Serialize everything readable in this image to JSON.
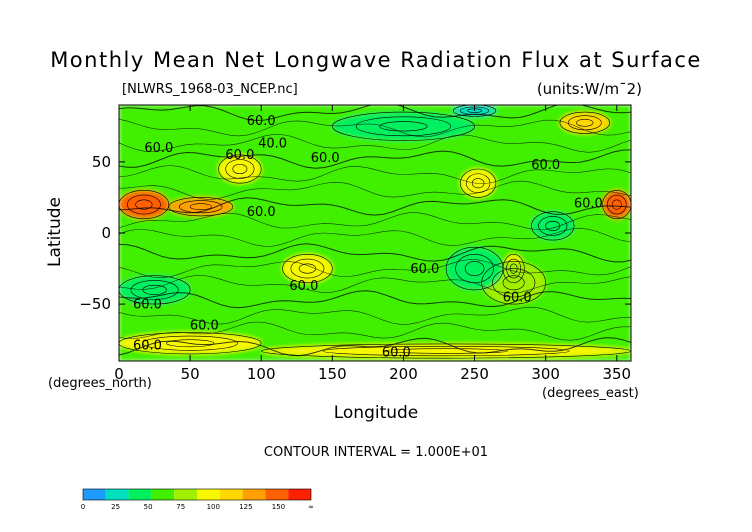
{
  "chart_data": {
    "type": "heatmap",
    "title": "Monthly Mean Net Longwave Radiation Flux at Surface",
    "file_label": "[NLWRS_1968-03_NCEP.nc]",
    "units_label": "(units:W/m¯2)",
    "xlabel": "Longitude",
    "ylabel": "Latitude",
    "x_unit": "(degrees_east)",
    "y_unit": "(degrees_north)",
    "xlim": [
      0,
      360
    ],
    "ylim": [
      -90,
      90
    ],
    "x_ticks": [
      0,
      50,
      100,
      150,
      200,
      250,
      300,
      350
    ],
    "y_ticks": [
      50,
      0,
      -50
    ],
    "contour_interval_label": "CONTOUR INTERVAL = 1.000E+01",
    "contour_labels": [
      "40.0",
      "60.0",
      "60.0",
      "60.0",
      "60.0",
      "60.0",
      "60.0",
      "60.0",
      "60.0",
      "60.0",
      "60.0",
      "60.0",
      "60.0",
      "60.0",
      "60.0"
    ],
    "colorbar": {
      "ticks": [
        "0",
        "25",
        "50",
        "75",
        "100",
        "125",
        "150",
        "∞"
      ],
      "colors": [
        "#1e9bff",
        "#00e0c0",
        "#00f060",
        "#40f000",
        "#a0f000",
        "#f8f800",
        "#ffd800",
        "#ffa000",
        "#ff6000",
        "#ff2000"
      ]
    },
    "regions": [
      {
        "lon": [
          0,
          360
        ],
        "lat": [
          -90,
          90
        ],
        "value": 60
      },
      {
        "lon": [
          0,
          360
        ],
        "lat": [
          -12,
          25
        ],
        "value": 58
      },
      {
        "lon": [
          0,
          35
        ],
        "lat": [
          10,
          30
        ],
        "value": 145
      },
      {
        "lon": [
          35,
          80
        ],
        "lat": [
          12,
          25
        ],
        "value": 120
      },
      {
        "lon": [
          70,
          100
        ],
        "lat": [
          35,
          55
        ],
        "value": 100
      },
      {
        "lon": [
          240,
          265
        ],
        "lat": [
          25,
          45
        ],
        "value": 95
      },
      {
        "lon": [
          340,
          360
        ],
        "lat": [
          10,
          30
        ],
        "value": 140
      },
      {
        "lon": [
          310,
          345
        ],
        "lat": [
          70,
          85
        ],
        "value": 110
      },
      {
        "lon": [
          115,
          150
        ],
        "lat": [
          -35,
          -15
        ],
        "value": 100
      },
      {
        "lon": [
          270,
          285
        ],
        "lat": [
          -35,
          -15
        ],
        "value": 100
      },
      {
        "lon": [
          255,
          300
        ],
        "lat": [
          -50,
          -20
        ],
        "value": 80
      },
      {
        "lon": [
          0,
          100
        ],
        "lat": [
          -85,
          -70
        ],
        "value": 85
      },
      {
        "lon": [
          100,
          360
        ],
        "lat": [
          -88,
          -78
        ],
        "value": 85
      },
      {
        "lon": [
          230,
          270
        ],
        "lat": [
          -40,
          -10
        ],
        "value": 45
      },
      {
        "lon": [
          290,
          320
        ],
        "lat": [
          -5,
          15
        ],
        "value": 45
      },
      {
        "lon": [
          0,
          50
        ],
        "lat": [
          -50,
          -30
        ],
        "value": 45
      },
      {
        "lon": [
          150,
          250
        ],
        "lat": [
          65,
          85
        ],
        "value": 45
      },
      {
        "lon": [
          235,
          265
        ],
        "lat": [
          82,
          90
        ],
        "value": 20
      }
    ]
  }
}
